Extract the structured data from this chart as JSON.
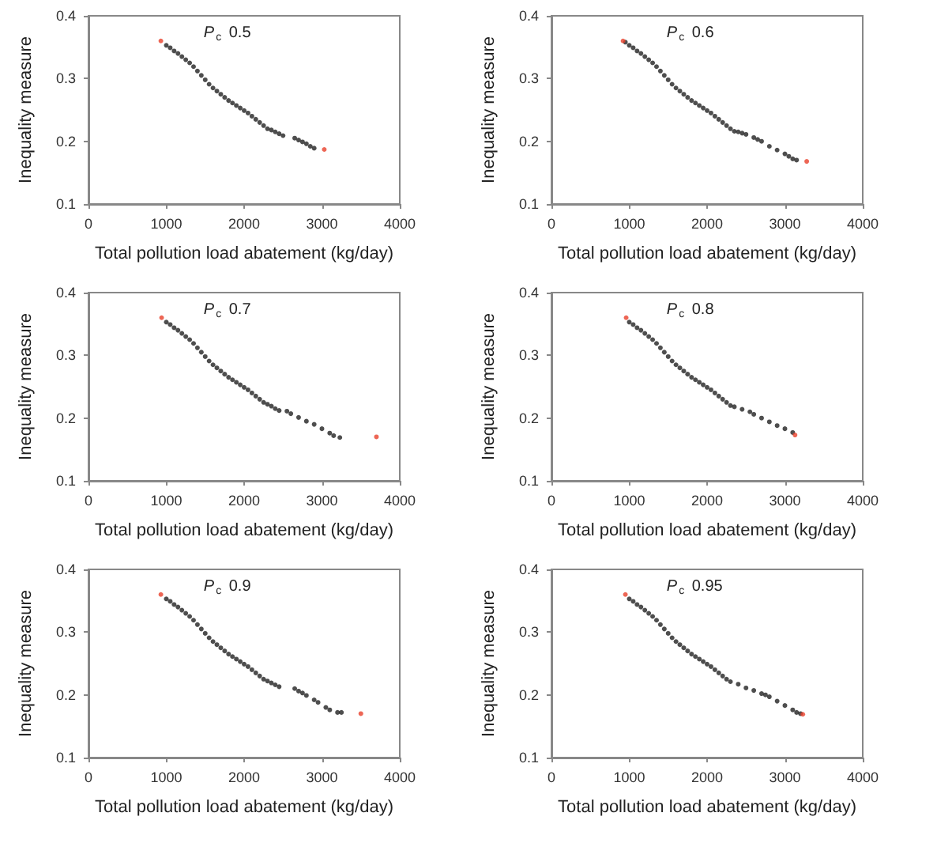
{
  "chart_data": [
    {
      "type": "scatter",
      "xlabel": "Total pollution load abatement (kg/day)",
      "ylabel": "Inequality measure",
      "annotations": [
        "P$_{c}$ 0.5"
      ],
      "xlim": [
        0,
        4000
      ],
      "xticks": [
        0,
        1000,
        2000,
        3000,
        4000
      ],
      "ylim": [
        0.1,
        0.4
      ],
      "yticks": [
        0.1,
        0.2,
        0.3,
        0.4
      ],
      "marker": "circle",
      "series": [
        {
          "color": "#222222",
          "x": [
            1000,
            1050,
            1100,
            1150,
            1200,
            1250,
            1300,
            1350,
            1400,
            1450,
            1500,
            1550,
            1600,
            1650,
            1700,
            1750,
            1800,
            1850,
            1900,
            1950,
            2000,
            2050,
            2100,
            2150,
            2200,
            2250,
            2300,
            2350,
            2400,
            2450,
            2500,
            2650,
            2700,
            2750,
            2800,
            2850,
            2900
          ],
          "values": [
            0.353,
            0.349,
            0.344,
            0.34,
            0.335,
            0.33,
            0.325,
            0.319,
            0.312,
            0.305,
            0.298,
            0.291,
            0.285,
            0.28,
            0.275,
            0.27,
            0.265,
            0.261,
            0.257,
            0.253,
            0.249,
            0.245,
            0.24,
            0.235,
            0.23,
            0.225,
            0.22,
            0.218,
            0.215,
            0.212,
            0.209,
            0.205,
            0.202,
            0.199,
            0.196,
            0.192,
            0.189
          ]
        },
        {
          "color": "#e8402a",
          "x": [
            930,
            3030
          ],
          "values": [
            0.36,
            0.187
          ]
        }
      ]
    },
    {
      "type": "scatter",
      "xlabel": "Total pollution load abatement (kg/day)",
      "ylabel": "Inequality measure",
      "annotations": [
        "P$_{c}$ 0.6"
      ],
      "xlim": [
        0,
        4000
      ],
      "xticks": [
        0,
        1000,
        2000,
        3000,
        4000
      ],
      "ylim": [
        0.1,
        0.4
      ],
      "yticks": [
        0.1,
        0.2,
        0.3,
        0.4
      ],
      "marker": "circle",
      "series": [
        {
          "color": "#222222",
          "x": [
            950,
            1000,
            1050,
            1100,
            1150,
            1200,
            1250,
            1300,
            1350,
            1400,
            1450,
            1500,
            1550,
            1600,
            1650,
            1700,
            1750,
            1800,
            1850,
            1900,
            1950,
            2000,
            2050,
            2100,
            2150,
            2200,
            2250,
            2300,
            2350,
            2400,
            2450,
            2500,
            2600,
            2650,
            2700,
            2800,
            2900,
            3000,
            3050,
            3100,
            3150
          ],
          "values": [
            0.358,
            0.353,
            0.349,
            0.344,
            0.34,
            0.335,
            0.33,
            0.325,
            0.319,
            0.312,
            0.305,
            0.298,
            0.291,
            0.285,
            0.28,
            0.275,
            0.27,
            0.265,
            0.261,
            0.257,
            0.253,
            0.249,
            0.245,
            0.24,
            0.235,
            0.23,
            0.225,
            0.22,
            0.216,
            0.215,
            0.213,
            0.211,
            0.206,
            0.203,
            0.2,
            0.192,
            0.186,
            0.18,
            0.176,
            0.172,
            0.17
          ]
        },
        {
          "color": "#e8402a",
          "x": [
            920,
            3280
          ],
          "values": [
            0.36,
            0.168
          ]
        }
      ]
    },
    {
      "type": "scatter",
      "xlabel": "Total pollution load abatement (kg/day)",
      "ylabel": "Inequality measure",
      "annotations": [
        "P$_{c}$ 0.7"
      ],
      "xlim": [
        0,
        4000
      ],
      "xticks": [
        0,
        1000,
        2000,
        3000,
        4000
      ],
      "ylim": [
        0.1,
        0.4
      ],
      "yticks": [
        0.1,
        0.2,
        0.3,
        0.4
      ],
      "marker": "circle",
      "series": [
        {
          "color": "#222222",
          "x": [
            1000,
            1050,
            1100,
            1150,
            1200,
            1250,
            1300,
            1350,
            1400,
            1450,
            1500,
            1550,
            1600,
            1650,
            1700,
            1750,
            1800,
            1850,
            1900,
            1950,
            2000,
            2050,
            2100,
            2150,
            2200,
            2250,
            2300,
            2350,
            2400,
            2450,
            2550,
            2600,
            2700,
            2800,
            2900,
            3000,
            3100,
            3150,
            3230
          ],
          "values": [
            0.353,
            0.349,
            0.344,
            0.34,
            0.335,
            0.33,
            0.325,
            0.319,
            0.312,
            0.305,
            0.298,
            0.291,
            0.285,
            0.28,
            0.275,
            0.27,
            0.265,
            0.261,
            0.257,
            0.253,
            0.249,
            0.245,
            0.24,
            0.235,
            0.23,
            0.225,
            0.222,
            0.219,
            0.215,
            0.212,
            0.211,
            0.207,
            0.201,
            0.195,
            0.19,
            0.183,
            0.176,
            0.172,
            0.169
          ]
        },
        {
          "color": "#e8402a",
          "x": [
            940,
            3700
          ],
          "values": [
            0.36,
            0.17
          ]
        }
      ]
    },
    {
      "type": "scatter",
      "xlabel": "Total pollution load abatement (kg/day)",
      "ylabel": "Inequality measure",
      "annotations": [
        "P$_{c}$ 0.8"
      ],
      "xlim": [
        0,
        4000
      ],
      "xticks": [
        0,
        1000,
        2000,
        3000,
        4000
      ],
      "ylim": [
        0.1,
        0.4
      ],
      "yticks": [
        0.1,
        0.2,
        0.3,
        0.4
      ],
      "marker": "circle",
      "series": [
        {
          "color": "#222222",
          "x": [
            1000,
            1050,
            1100,
            1150,
            1200,
            1250,
            1300,
            1350,
            1400,
            1450,
            1500,
            1550,
            1600,
            1650,
            1700,
            1750,
            1800,
            1850,
            1900,
            1950,
            2000,
            2050,
            2100,
            2150,
            2200,
            2250,
            2300,
            2350,
            2450,
            2550,
            2600,
            2700,
            2800,
            2900,
            3000,
            3100
          ],
          "values": [
            0.353,
            0.349,
            0.344,
            0.34,
            0.335,
            0.33,
            0.325,
            0.319,
            0.312,
            0.305,
            0.298,
            0.291,
            0.285,
            0.28,
            0.275,
            0.27,
            0.265,
            0.261,
            0.257,
            0.253,
            0.249,
            0.245,
            0.24,
            0.235,
            0.23,
            0.225,
            0.22,
            0.218,
            0.214,
            0.21,
            0.206,
            0.2,
            0.194,
            0.188,
            0.183,
            0.177
          ]
        },
        {
          "color": "#e8402a",
          "x": [
            960,
            3130
          ],
          "values": [
            0.36,
            0.173
          ]
        }
      ]
    },
    {
      "type": "scatter",
      "xlabel": "Total pollution load abatement (kg/day)",
      "ylabel": "Inequality measure",
      "annotations": [
        "P$_{c}$ 0.9"
      ],
      "xlim": [
        0,
        4000
      ],
      "xticks": [
        0,
        1000,
        2000,
        3000,
        4000
      ],
      "ylim": [
        0.1,
        0.4
      ],
      "yticks": [
        0.1,
        0.2,
        0.3,
        0.4
      ],
      "marker": "circle",
      "series": [
        {
          "color": "#222222",
          "x": [
            1000,
            1050,
            1100,
            1150,
            1200,
            1250,
            1300,
            1350,
            1400,
            1450,
            1500,
            1550,
            1600,
            1650,
            1700,
            1750,
            1800,
            1850,
            1900,
            1950,
            2000,
            2050,
            2100,
            2150,
            2200,
            2250,
            2300,
            2350,
            2400,
            2450,
            2650,
            2700,
            2750,
            2800,
            2900,
            2950,
            3050,
            3100,
            3200,
            3250
          ],
          "values": [
            0.353,
            0.349,
            0.344,
            0.34,
            0.335,
            0.33,
            0.325,
            0.319,
            0.312,
            0.305,
            0.298,
            0.291,
            0.285,
            0.28,
            0.275,
            0.27,
            0.265,
            0.261,
            0.257,
            0.253,
            0.249,
            0.245,
            0.24,
            0.235,
            0.23,
            0.225,
            0.222,
            0.219,
            0.216,
            0.213,
            0.21,
            0.206,
            0.203,
            0.199,
            0.192,
            0.188,
            0.18,
            0.176,
            0.172,
            0.172
          ]
        },
        {
          "color": "#e8402a",
          "x": [
            930,
            3500
          ],
          "values": [
            0.36,
            0.17
          ]
        }
      ]
    },
    {
      "type": "scatter",
      "xlabel": "Total pollution load abatement (kg/day)",
      "ylabel": "Inequality measure",
      "annotations": [
        "P$_{c}$ 0.95"
      ],
      "xlim": [
        0,
        4000
      ],
      "xticks": [
        0,
        1000,
        2000,
        3000,
        4000
      ],
      "ylim": [
        0.1,
        0.4
      ],
      "yticks": [
        0.1,
        0.2,
        0.3,
        0.4
      ],
      "marker": "circle",
      "series": [
        {
          "color": "#222222",
          "x": [
            1000,
            1050,
            1100,
            1150,
            1200,
            1250,
            1300,
            1350,
            1400,
            1450,
            1500,
            1550,
            1600,
            1650,
            1700,
            1750,
            1800,
            1850,
            1900,
            1950,
            2000,
            2050,
            2100,
            2150,
            2200,
            2250,
            2300,
            2400,
            2500,
            2600,
            2700,
            2750,
            2800,
            2900,
            3000,
            3100,
            3150,
            3200
          ],
          "values": [
            0.353,
            0.349,
            0.344,
            0.34,
            0.335,
            0.33,
            0.325,
            0.319,
            0.312,
            0.305,
            0.298,
            0.291,
            0.285,
            0.28,
            0.275,
            0.27,
            0.265,
            0.261,
            0.257,
            0.253,
            0.249,
            0.245,
            0.24,
            0.235,
            0.23,
            0.225,
            0.221,
            0.217,
            0.211,
            0.207,
            0.202,
            0.2,
            0.197,
            0.19,
            0.183,
            0.176,
            0.172,
            0.17
          ]
        },
        {
          "color": "#e8402a",
          "x": [
            950,
            3230
          ],
          "values": [
            0.36,
            0.169
          ]
        }
      ]
    }
  ]
}
